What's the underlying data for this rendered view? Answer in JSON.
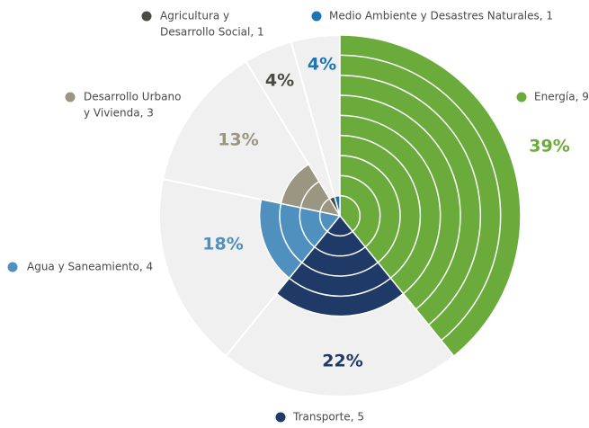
{
  "chart_data": {
    "type": "polar_area",
    "categories": [
      [
        "Energía, 9"
      ],
      [
        "Transporte, 5"
      ],
      [
        "Agua y Saneamiento, 4"
      ],
      [
        "Desarrollo Urbano",
        "y Vivienda, 3"
      ],
      [
        "Agricultura y",
        "Desarrollo Social, 1"
      ],
      [
        "Medio Ambiente y Desastres Naturales, 1"
      ]
    ],
    "values": [
      9,
      5,
      4,
      3,
      1,
      1
    ],
    "percent_labels": [
      "39%",
      "22%",
      "18%",
      "13%",
      "4%",
      "4%"
    ],
    "colors": [
      "#6aab3c",
      "#1f3a66",
      "#4f90bf",
      "#9b9681",
      "#4b4b43",
      "#1b76b8"
    ],
    "background_color": "#f0f0f0"
  }
}
